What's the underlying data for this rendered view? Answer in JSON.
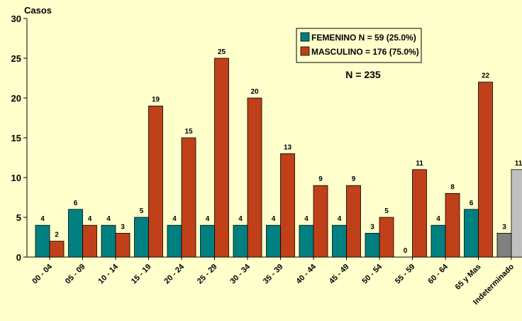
{
  "chart_data": {
    "type": "bar",
    "y_label": "Casos",
    "annotation": "N = 235",
    "categories": [
      "00 - 04",
      "05 - 09",
      "10 - 14",
      "15 - 19",
      "20 - 24",
      "25 - 29",
      "30 - 34",
      "35 - 39",
      "40 - 44",
      "45 - 49",
      "50 - 54",
      "55 - 59",
      "60 - 64",
      "65 y Mas",
      "Indeterminado"
    ],
    "series": [
      {
        "name": "FEMENINO N = 59 (25.0%)",
        "color": "#008080",
        "point_colors": {
          "14": "#808080"
        },
        "values": [
          4,
          6,
          4,
          5,
          4,
          4,
          4,
          4,
          4,
          4,
          3,
          0,
          4,
          6,
          3
        ]
      },
      {
        "name": "MASCULINO = 176 (75.0%)",
        "color": "#c0401a",
        "point_colors": {
          "14": "#c0c0c0"
        },
        "values": [
          2,
          4,
          3,
          19,
          15,
          25,
          20,
          13,
          9,
          9,
          5,
          11,
          8,
          22,
          11
        ]
      }
    ],
    "ylim": [
      0,
      30
    ],
    "yticks": [
      0,
      5,
      10,
      15,
      20,
      25,
      30
    ],
    "grid": false,
    "legend": "top-right"
  }
}
